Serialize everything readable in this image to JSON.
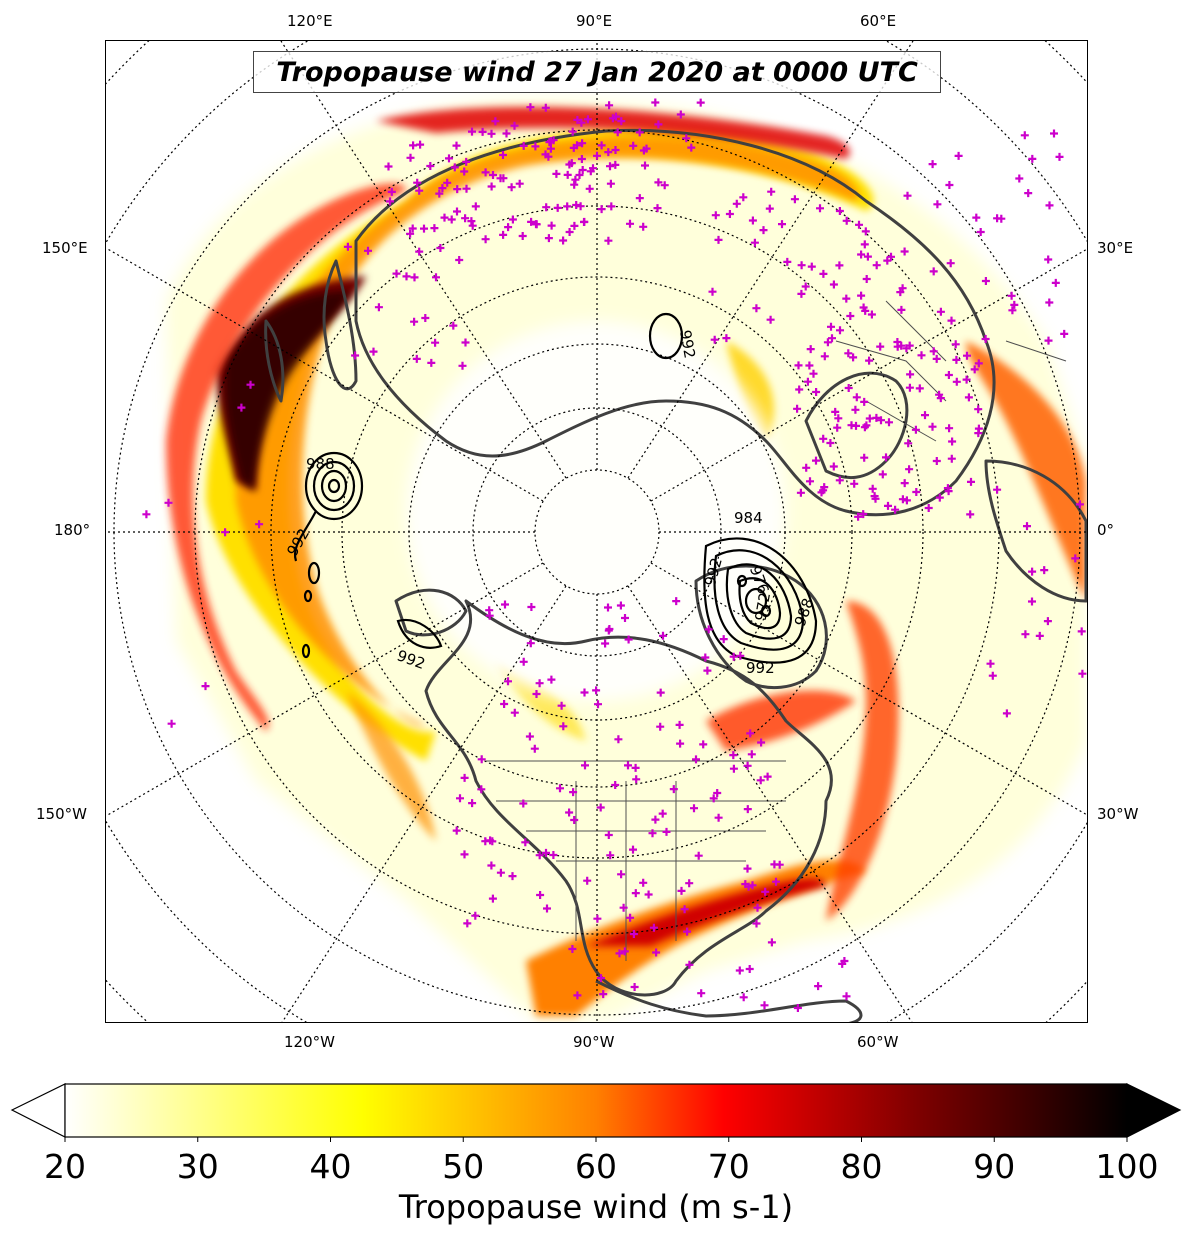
{
  "title": "Tropopause wind 27 Jan 2020 at 0000 UTC",
  "longitude_labels": {
    "top": [
      "120°E",
      "90°E",
      "60°E"
    ],
    "bottom": [
      "120°W",
      "90°W",
      "60°W"
    ],
    "left": [
      "150°E",
      "180°",
      "150°W"
    ],
    "right": [
      "30°E",
      "0°",
      "30°W"
    ]
  },
  "colorbar": {
    "label": "Tropopause wind (m s-1)",
    "min": 20,
    "max": 100,
    "ticks": [
      "20",
      "30",
      "40",
      "50",
      "60",
      "70",
      "80",
      "90",
      "100"
    ],
    "extend": "both",
    "colormap": "hot_r",
    "stops": [
      "#ffffff",
      "#ffff00",
      "#ff8000",
      "#ff0000",
      "#800000",
      "#000000"
    ]
  },
  "contours": {
    "variable": "sea level pressure",
    "labels": [
      "988",
      "992",
      "992",
      "992",
      "984",
      "976",
      "988",
      "992",
      "992",
      "972"
    ],
    "color": "#000000"
  },
  "colors": {
    "coastline": "#404040",
    "station_marker": "#cc00cc",
    "graticule": "#000000"
  },
  "icons": {
    "station_marker": "plus-marker-icon"
  }
}
